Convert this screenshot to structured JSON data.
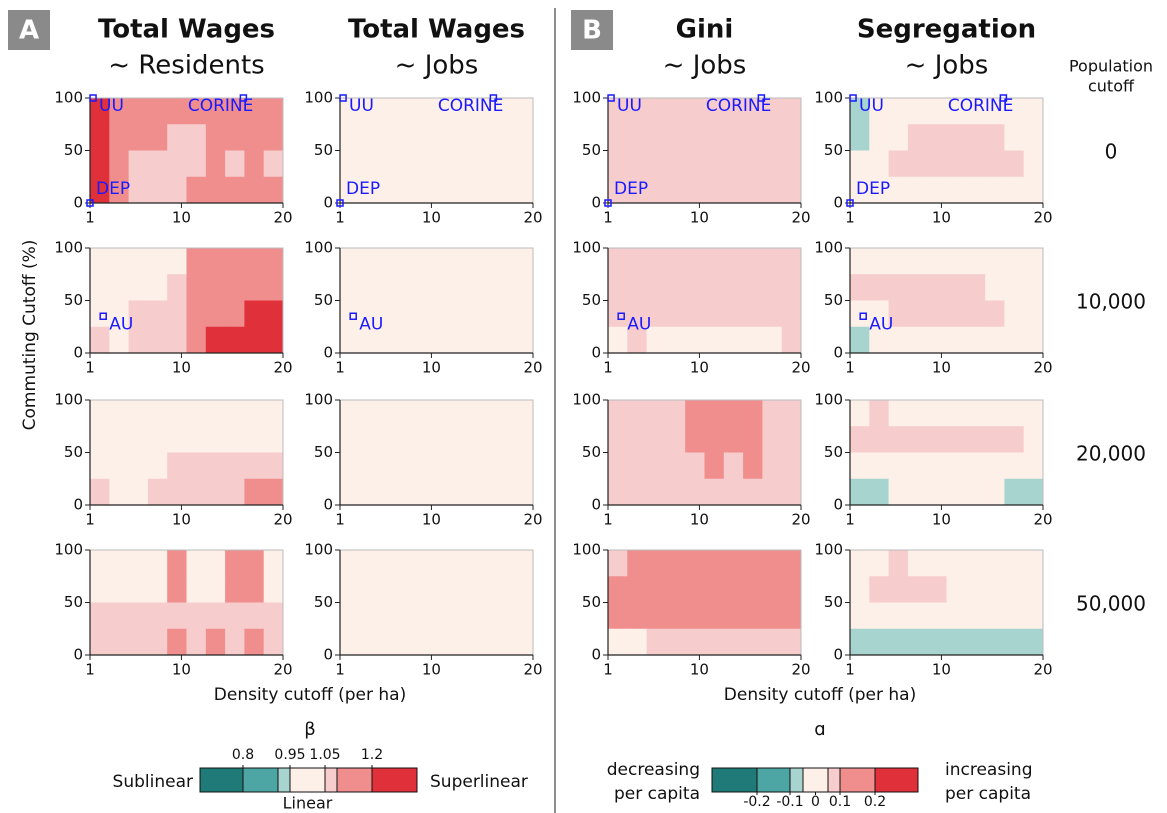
{
  "panel_letters": [
    "A",
    "B"
  ],
  "column_titles": [
    {
      "title": "Total Wages",
      "subtitle": "~ Residents"
    },
    {
      "title": "Total Wages",
      "subtitle": "~ Jobs"
    },
    {
      "title": "Gini",
      "subtitle": "~ Jobs"
    },
    {
      "title": "Segregation",
      "subtitle": "~ Jobs"
    }
  ],
  "row_header": [
    "Population",
    "cutoff"
  ],
  "row_labels": [
    0,
    "10,000",
    "20,000",
    "50,000"
  ],
  "y_label": "Commuting Cutoff (%)",
  "x_label": "Density cutoff (per ha)",
  "colorbars": [
    {
      "title": "β",
      "left": [
        "Sublinear"
      ],
      "right": [
        "Superlinear"
      ],
      "center": "Linear",
      "ticks": [
        0.8,
        0.95,
        1.05,
        1.2
      ],
      "bounds": [
        0.8,
        0.9,
        0.95,
        1.05,
        1.1,
        1.2
      ],
      "colors": [
        "#1f7a78",
        "#4da6a3",
        "#a8d4d0",
        "#fdf0e8",
        "#f6cccc",
        "#f08e8e",
        "#e0303a"
      ]
    },
    {
      "title": "ɑ",
      "left": [
        "decreasing",
        "per capita"
      ],
      "right": [
        "increasing",
        "per capita"
      ],
      "ticks": [
        -0.2,
        -0.1,
        0,
        0.1,
        0.2
      ],
      "bounds": [
        -0.2,
        -0.1,
        -0.05,
        0.05,
        0.1,
        0.2
      ],
      "colors": [
        "#1f7a78",
        "#4da6a3",
        "#a8d4d0",
        "#fdf0e8",
        "#f6cccc",
        "#f08e8e",
        "#e0303a"
      ]
    }
  ],
  "chart_data": [
    {
      "type": "heatmap",
      "xlim": [
        1,
        20
      ],
      "xticks": [
        1,
        10,
        20
      ],
      "ylim": [
        0,
        100
      ],
      "yticks": [
        0,
        50,
        100
      ],
      "z": [
        [
          1.25,
          1.15,
          1.15,
          1.15,
          1.15,
          1.15,
          1.15,
          1.15,
          1.15,
          1.15
        ],
        [
          1.25,
          1.15,
          1.15,
          1.15,
          1.07,
          1.07,
          1.15,
          1.15,
          1.15,
          1.15
        ],
        [
          1.25,
          1.15,
          1.07,
          1.07,
          1.07,
          1.07,
          1.15,
          1.07,
          1.15,
          1.07
        ],
        [
          1.25,
          1.15,
          1.07,
          1.07,
          1.07,
          1.15,
          1.15,
          1.15,
          1.15,
          1.15
        ]
      ],
      "annotations": [
        {
          "label": "UU",
          "x": 1.3,
          "y": 100
        },
        {
          "label": "CORINE",
          "x": 16.1,
          "y": 100
        },
        {
          "label": "DEP",
          "x": 1,
          "y": 0
        }
      ]
    },
    {
      "type": "heatmap",
      "xlim": [
        1,
        20
      ],
      "xticks": [
        1,
        10,
        20
      ],
      "ylim": [
        0,
        100
      ],
      "yticks": [
        0,
        50,
        100
      ],
      "z": [
        [
          1.0,
          1.0,
          1.0,
          1.0,
          1.0,
          1.0,
          1.0,
          1.0,
          1.0,
          1.0
        ],
        [
          1.0,
          1.0,
          1.0,
          1.0,
          1.0,
          1.0,
          1.0,
          1.0,
          1.0,
          1.0
        ],
        [
          1.0,
          1.0,
          1.0,
          1.0,
          1.0,
          1.0,
          1.0,
          1.0,
          1.0,
          1.0
        ],
        [
          1.0,
          1.0,
          1.0,
          1.0,
          1.0,
          1.0,
          1.0,
          1.0,
          1.0,
          1.0
        ]
      ],
      "annotations": [
        {
          "label": "UU",
          "x": 1.3,
          "y": 100
        },
        {
          "label": "CORINE",
          "x": 16.1,
          "y": 100
        },
        {
          "label": "DEP",
          "x": 1,
          "y": 0
        }
      ]
    },
    {
      "type": "heatmap",
      "xlim": [
        1,
        20
      ],
      "xticks": [
        1,
        10,
        20
      ],
      "ylim": [
        0,
        100
      ],
      "yticks": [
        0,
        50,
        100
      ],
      "z": [
        [
          0.07,
          0.07,
          0.07,
          0.07,
          0.07,
          0.07,
          0.07,
          0.07,
          0.07,
          0.07
        ],
        [
          0.07,
          0.07,
          0.07,
          0.07,
          0.07,
          0.07,
          0.07,
          0.07,
          0.07,
          0.07
        ],
        [
          0.07,
          0.07,
          0.07,
          0.07,
          0.07,
          0.07,
          0.07,
          0.07,
          0.07,
          0.07
        ],
        [
          0.07,
          0.07,
          0.07,
          0.07,
          0.07,
          0.07,
          0.07,
          0.07,
          0.07,
          0.07
        ]
      ],
      "annotations": [
        {
          "label": "UU",
          "x": 1.3,
          "y": 100
        },
        {
          "label": "CORINE",
          "x": 16.1,
          "y": 100
        },
        {
          "label": "DEP",
          "x": 1,
          "y": 0
        }
      ]
    },
    {
      "type": "heatmap",
      "xlim": [
        1,
        20
      ],
      "xticks": [
        1,
        10,
        20
      ],
      "ylim": [
        0,
        100
      ],
      "yticks": [
        0,
        50,
        100
      ],
      "z": [
        [
          -0.07,
          0,
          0,
          0,
          0,
          0,
          0,
          0,
          0,
          0
        ],
        [
          -0.07,
          0,
          0,
          0.07,
          0.07,
          0.07,
          0.07,
          0.07,
          0,
          0
        ],
        [
          0,
          0,
          0.07,
          0.07,
          0.07,
          0.07,
          0.07,
          0.07,
          0.07,
          0
        ],
        [
          0,
          0,
          0,
          0,
          0,
          0,
          0,
          0,
          0,
          0
        ]
      ],
      "annotations": [
        {
          "label": "UU",
          "x": 1.3,
          "y": 100
        },
        {
          "label": "CORINE",
          "x": 16.1,
          "y": 100
        },
        {
          "label": "DEP",
          "x": 1,
          "y": 0
        }
      ]
    },
    {
      "type": "heatmap",
      "xlim": [
        1,
        20
      ],
      "xticks": [
        1,
        10,
        20
      ],
      "ylim": [
        0,
        100
      ],
      "yticks": [
        0,
        50,
        100
      ],
      "z": [
        [
          1.0,
          1.0,
          1.0,
          1.0,
          1.0,
          1.15,
          1.15,
          1.15,
          1.15,
          1.15
        ],
        [
          1.0,
          1.0,
          1.0,
          1.0,
          1.07,
          1.15,
          1.15,
          1.15,
          1.15,
          1.15
        ],
        [
          1.0,
          1.0,
          1.07,
          1.07,
          1.07,
          1.15,
          1.15,
          1.15,
          1.25,
          1.25
        ],
        [
          1.07,
          1.0,
          1.07,
          1.07,
          1.07,
          1.15,
          1.25,
          1.25,
          1.25,
          1.25
        ]
      ],
      "annotations": [
        {
          "label": "AU",
          "x": 2.3,
          "y": 35
        }
      ]
    },
    {
      "type": "heatmap",
      "xlim": [
        1,
        20
      ],
      "xticks": [
        1,
        10,
        20
      ],
      "ylim": [
        0,
        100
      ],
      "yticks": [
        0,
        50,
        100
      ],
      "z": [
        [
          1.0,
          1.0,
          1.0,
          1.0,
          1.0,
          1.0,
          1.0,
          1.0,
          1.0,
          1.0
        ],
        [
          1.0,
          1.0,
          1.0,
          1.0,
          1.0,
          1.0,
          1.0,
          1.0,
          1.0,
          1.0
        ],
        [
          1.0,
          1.0,
          1.0,
          1.0,
          1.0,
          1.0,
          1.0,
          1.0,
          1.0,
          1.0
        ],
        [
          1.0,
          1.0,
          1.0,
          1.0,
          1.0,
          1.0,
          1.0,
          1.0,
          1.0,
          1.0
        ]
      ],
      "annotations": [
        {
          "label": "AU",
          "x": 2.3,
          "y": 35
        }
      ]
    },
    {
      "type": "heatmap",
      "xlim": [
        1,
        20
      ],
      "xticks": [
        1,
        10,
        20
      ],
      "ylim": [
        0,
        100
      ],
      "yticks": [
        0,
        50,
        100
      ],
      "z": [
        [
          0.07,
          0.07,
          0.07,
          0.07,
          0.07,
          0.07,
          0.07,
          0.07,
          0.07,
          0.07
        ],
        [
          0.07,
          0.07,
          0.07,
          0.07,
          0.07,
          0.07,
          0.07,
          0.07,
          0.07,
          0.07
        ],
        [
          0.07,
          0.07,
          0.07,
          0.07,
          0.07,
          0.07,
          0.07,
          0.07,
          0.07,
          0.07
        ],
        [
          0,
          0.07,
          0,
          0,
          0,
          0,
          0,
          0,
          0,
          0.07
        ]
      ],
      "annotations": [
        {
          "label": "AU",
          "x": 2.3,
          "y": 35
        }
      ]
    },
    {
      "type": "heatmap",
      "xlim": [
        1,
        20
      ],
      "xticks": [
        1,
        10,
        20
      ],
      "ylim": [
        0,
        100
      ],
      "yticks": [
        0,
        50,
        100
      ],
      "z": [
        [
          0,
          0,
          0,
          0,
          0,
          0,
          0,
          0,
          0,
          0
        ],
        [
          0.07,
          0.07,
          0.07,
          0.07,
          0.07,
          0.07,
          0.07,
          0,
          0,
          0
        ],
        [
          0,
          0,
          0.07,
          0.07,
          0.07,
          0.07,
          0.07,
          0.07,
          0,
          0
        ],
        [
          -0.07,
          0,
          0,
          0,
          0,
          0,
          0,
          0,
          0,
          0
        ]
      ],
      "annotations": [
        {
          "label": "AU",
          "x": 2.3,
          "y": 35
        }
      ]
    },
    {
      "type": "heatmap",
      "xlim": [
        1,
        20
      ],
      "xticks": [
        1,
        10,
        20
      ],
      "ylim": [
        0,
        100
      ],
      "yticks": [
        0,
        50,
        100
      ],
      "z": [
        [
          1.0,
          1.0,
          1.0,
          1.0,
          1.0,
          1.0,
          1.0,
          1.0,
          1.0,
          1.0
        ],
        [
          1.0,
          1.0,
          1.0,
          1.0,
          1.0,
          1.0,
          1.0,
          1.0,
          1.0,
          1.0
        ],
        [
          1.0,
          1.0,
          1.0,
          1.0,
          1.07,
          1.07,
          1.07,
          1.07,
          1.07,
          1.07
        ],
        [
          1.07,
          1.0,
          1.0,
          1.07,
          1.07,
          1.07,
          1.07,
          1.07,
          1.15,
          1.15
        ]
      ],
      "annotations": []
    },
    {
      "type": "heatmap",
      "xlim": [
        1,
        20
      ],
      "xticks": [
        1,
        10,
        20
      ],
      "ylim": [
        0,
        100
      ],
      "yticks": [
        0,
        50,
        100
      ],
      "z": [
        [
          1.0,
          1.0,
          1.0,
          1.0,
          1.0,
          1.0,
          1.0,
          1.0,
          1.0,
          1.0
        ],
        [
          1.0,
          1.0,
          1.0,
          1.0,
          1.0,
          1.0,
          1.0,
          1.0,
          1.0,
          1.0
        ],
        [
          1.0,
          1.0,
          1.0,
          1.0,
          1.0,
          1.0,
          1.0,
          1.0,
          1.0,
          1.0
        ],
        [
          1.0,
          1.0,
          1.0,
          1.0,
          1.0,
          1.0,
          1.0,
          1.0,
          1.0,
          1.0
        ]
      ],
      "annotations": []
    },
    {
      "type": "heatmap",
      "xlim": [
        1,
        20
      ],
      "xticks": [
        1,
        10,
        20
      ],
      "ylim": [
        0,
        100
      ],
      "yticks": [
        0,
        50,
        100
      ],
      "z": [
        [
          0.07,
          0.07,
          0.07,
          0.07,
          0.15,
          0.15,
          0.15,
          0.15,
          0.07,
          0.07
        ],
        [
          0.07,
          0.07,
          0.07,
          0.07,
          0.15,
          0.15,
          0.15,
          0.15,
          0.07,
          0.07
        ],
        [
          0.07,
          0.07,
          0.07,
          0.07,
          0.07,
          0.15,
          0.07,
          0.15,
          0.07,
          0.07
        ],
        [
          0.07,
          0.07,
          0.07,
          0.07,
          0.07,
          0.07,
          0.07,
          0.07,
          0.07,
          0.07
        ]
      ],
      "annotations": []
    },
    {
      "type": "heatmap",
      "xlim": [
        1,
        20
      ],
      "xticks": [
        1,
        10,
        20
      ],
      "ylim": [
        0,
        100
      ],
      "yticks": [
        0,
        50,
        100
      ],
      "z": [
        [
          0,
          0.07,
          0,
          0,
          0,
          0,
          0,
          0,
          0,
          0
        ],
        [
          0.07,
          0.07,
          0.07,
          0.07,
          0.07,
          0.07,
          0.07,
          0.07,
          0.07,
          0
        ],
        [
          0,
          0,
          0,
          0,
          0,
          0,
          0,
          0,
          0,
          0
        ],
        [
          -0.07,
          -0.07,
          0,
          0,
          0,
          0,
          0,
          0,
          -0.07,
          -0.07
        ]
      ],
      "annotations": []
    },
    {
      "type": "heatmap",
      "xlim": [
        1,
        20
      ],
      "xticks": [
        1,
        10,
        20
      ],
      "ylim": [
        0,
        100
      ],
      "yticks": [
        0,
        50,
        100
      ],
      "z": [
        [
          1.0,
          1.0,
          1.0,
          1.0,
          1.15,
          1.0,
          1.0,
          1.15,
          1.15,
          1.0
        ],
        [
          1.0,
          1.0,
          1.0,
          1.0,
          1.15,
          1.0,
          1.0,
          1.15,
          1.15,
          1.0
        ],
        [
          1.07,
          1.07,
          1.07,
          1.07,
          1.07,
          1.07,
          1.07,
          1.07,
          1.07,
          1.07
        ],
        [
          1.07,
          1.07,
          1.07,
          1.07,
          1.15,
          1.07,
          1.15,
          1.07,
          1.15,
          1.07
        ]
      ],
      "annotations": []
    },
    {
      "type": "heatmap",
      "xlim": [
        1,
        20
      ],
      "xticks": [
        1,
        10,
        20
      ],
      "ylim": [
        0,
        100
      ],
      "yticks": [
        0,
        50,
        100
      ],
      "z": [
        [
          1.0,
          1.0,
          1.0,
          1.0,
          1.0,
          1.0,
          1.0,
          1.0,
          1.0,
          1.0
        ],
        [
          1.0,
          1.0,
          1.0,
          1.0,
          1.0,
          1.0,
          1.0,
          1.0,
          1.0,
          1.0
        ],
        [
          1.0,
          1.0,
          1.0,
          1.0,
          1.0,
          1.0,
          1.0,
          1.0,
          1.0,
          1.0
        ],
        [
          1.0,
          1.0,
          1.0,
          1.0,
          1.0,
          1.0,
          1.0,
          1.0,
          1.0,
          1.0
        ]
      ],
      "annotations": []
    },
    {
      "type": "heatmap",
      "xlim": [
        1,
        20
      ],
      "xticks": [
        1,
        10,
        20
      ],
      "ylim": [
        0,
        100
      ],
      "yticks": [
        0,
        50,
        100
      ],
      "z": [
        [
          0.07,
          0.15,
          0.15,
          0.15,
          0.15,
          0.15,
          0.15,
          0.15,
          0.15,
          0.15
        ],
        [
          0.15,
          0.15,
          0.15,
          0.15,
          0.15,
          0.15,
          0.15,
          0.15,
          0.15,
          0.15
        ],
        [
          0.15,
          0.15,
          0.15,
          0.15,
          0.15,
          0.15,
          0.15,
          0.15,
          0.15,
          0.15
        ],
        [
          0,
          0,
          0.07,
          0.07,
          0.07,
          0.07,
          0.07,
          0.07,
          0.07,
          0.07
        ]
      ],
      "annotations": []
    },
    {
      "type": "heatmap",
      "xlim": [
        1,
        20
      ],
      "xticks": [
        1,
        10,
        20
      ],
      "ylim": [
        0,
        100
      ],
      "yticks": [
        0,
        50,
        100
      ],
      "z": [
        [
          0,
          0,
          0.07,
          0,
          0,
          0,
          0,
          0,
          0,
          0
        ],
        [
          0,
          0.07,
          0.07,
          0.07,
          0.07,
          0,
          0,
          0,
          0,
          0
        ],
        [
          0,
          0,
          0,
          0,
          0,
          0,
          0,
          0,
          0,
          0
        ],
        [
          -0.07,
          -0.07,
          -0.07,
          -0.07,
          -0.07,
          -0.07,
          -0.07,
          -0.07,
          -0.07,
          -0.07
        ]
      ],
      "annotations": []
    }
  ]
}
